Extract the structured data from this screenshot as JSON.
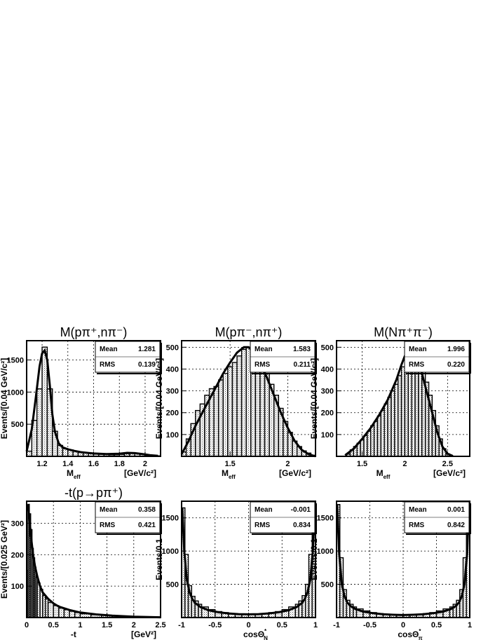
{
  "chart_data": [
    {
      "type": "histogram",
      "title": "M(pπ⁺,nπ⁻)",
      "ylabel": "Events/[0.04 GeV/c²]",
      "xlabel": "M_eff",
      "xlabel_main": "M",
      "xlabel_sub": "eff",
      "xunit": "[GeV/c²]",
      "xlim": [
        1.08,
        2.12
      ],
      "ylim": [
        0,
        1800
      ],
      "xticks": [
        1.2,
        1.4,
        1.6,
        1.8,
        2.0
      ],
      "xtick_labels": [
        "1.2",
        "1.4",
        "1.6",
        "1.8",
        "2"
      ],
      "yticks": [
        500,
        1000,
        1500
      ],
      "ytick_labels": [
        "500",
        "1000",
        "1500"
      ],
      "grid": true,
      "legend": "top-right",
      "stats": {
        "mean_label": "Mean",
        "mean": "1.281",
        "rms_label": "RMS",
        "rms": "0.139"
      },
      "bins_x": [
        1.08,
        1.12,
        1.16,
        1.2,
        1.24,
        1.28,
        1.32,
        1.36,
        1.4,
        1.44,
        1.48,
        1.52,
        1.56,
        1.6,
        1.64,
        1.68,
        1.72,
        1.76,
        1.8,
        1.84,
        1.88,
        1.92,
        1.96,
        2.0,
        2.04,
        2.08
      ],
      "bin_values": [
        80,
        560,
        1050,
        1700,
        1050,
        390,
        170,
        120,
        100,
        80,
        65,
        55,
        45,
        38,
        32,
        28,
        24,
        25,
        30,
        40,
        45,
        40,
        30,
        20,
        12,
        8
      ],
      "fit_x": [
        1.08,
        1.12,
        1.15,
        1.18,
        1.2,
        1.22,
        1.24,
        1.26,
        1.28,
        1.3,
        1.33,
        1.36,
        1.4,
        1.45,
        1.5,
        1.6,
        1.7,
        1.8,
        1.86,
        1.92,
        1.98,
        2.04,
        2.1
      ],
      "fit_y": [
        80,
        420,
        900,
        1400,
        1600,
        1650,
        1500,
        1100,
        650,
        380,
        200,
        140,
        110,
        85,
        65,
        45,
        35,
        40,
        55,
        50,
        35,
        18,
        8
      ]
    },
    {
      "type": "histogram",
      "title": "M(pπ⁻,nπ⁺)",
      "ylabel": "Events/[0.04 GeV/c²]",
      "xlabel": "M_eff",
      "xlabel_main": "M",
      "xlabel_sub": "eff",
      "xunit": "[GeV/c²]",
      "xlim": [
        1.08,
        2.24
      ],
      "ylim": [
        0,
        530
      ],
      "xticks": [
        1.5,
        2.0
      ],
      "xtick_labels": [
        "1.5",
        "2"
      ],
      "yticks": [
        100,
        200,
        300,
        400,
        500
      ],
      "ytick_labels": [
        "100",
        "200",
        "300",
        "400",
        "500"
      ],
      "grid": true,
      "legend": "top-right",
      "stats": {
        "mean_label": "Mean",
        "mean": "1.583",
        "rms_label": "RMS",
        "rms": "0.211"
      },
      "bins_x": [
        1.08,
        1.12,
        1.16,
        1.2,
        1.24,
        1.28,
        1.32,
        1.36,
        1.4,
        1.44,
        1.48,
        1.52,
        1.56,
        1.6,
        1.64,
        1.68,
        1.72,
        1.76,
        1.8,
        1.84,
        1.88,
        1.92,
        1.96,
        2.0,
        2.04,
        2.08,
        2.12,
        2.16,
        2.2
      ],
      "bin_values": [
        20,
        80,
        150,
        210,
        240,
        280,
        310,
        320,
        350,
        380,
        410,
        430,
        460,
        490,
        500,
        490,
        460,
        420,
        380,
        330,
        280,
        220,
        160,
        110,
        70,
        45,
        25,
        15,
        5
      ],
      "fit_x": [
        1.08,
        1.14,
        1.2,
        1.26,
        1.32,
        1.38,
        1.44,
        1.5,
        1.56,
        1.62,
        1.66,
        1.7,
        1.76,
        1.82,
        1.88,
        1.94,
        2.0,
        2.06,
        2.12,
        2.18,
        2.24
      ],
      "fit_y": [
        10,
        70,
        140,
        200,
        260,
        320,
        380,
        430,
        475,
        500,
        500,
        480,
        430,
        360,
        280,
        200,
        130,
        70,
        30,
        10,
        0
      ]
    },
    {
      "type": "histogram",
      "title": "M(Nπ⁺π⁻)",
      "ylabel": "Events/[0.04 GeV/c²]",
      "xlabel": "M_eff",
      "xlabel_main": "M",
      "xlabel_sub": "eff",
      "xunit": "[GeV/c²]",
      "xlim": [
        1.2,
        2.76
      ],
      "ylim": [
        0,
        530
      ],
      "xticks": [
        1.5,
        2.0,
        2.5
      ],
      "xtick_labels": [
        "1.5",
        "2",
        "2.5"
      ],
      "yticks": [
        100,
        200,
        300,
        400,
        500
      ],
      "ytick_labels": [
        "100",
        "200",
        "300",
        "400",
        "500"
      ],
      "grid": true,
      "legend": "top-right",
      "stats": {
        "mean_label": "Mean",
        "mean": "1.996",
        "rms_label": "RMS",
        "rms": "0.220"
      },
      "bins_x": [
        1.32,
        1.36,
        1.4,
        1.44,
        1.48,
        1.52,
        1.56,
        1.6,
        1.64,
        1.68,
        1.72,
        1.76,
        1.8,
        1.84,
        1.88,
        1.92,
        1.96,
        2.0,
        2.04,
        2.08,
        2.12,
        2.16,
        2.2,
        2.24,
        2.28,
        2.32,
        2.36,
        2.4,
        2.44,
        2.48,
        2.52
      ],
      "bin_values": [
        10,
        30,
        45,
        60,
        75,
        95,
        115,
        140,
        160,
        185,
        210,
        240,
        270,
        300,
        330,
        370,
        410,
        450,
        470,
        490,
        480,
        450,
        400,
        340,
        280,
        210,
        140,
        80,
        35,
        12,
        4
      ],
      "fit_x": [
        1.3,
        1.4,
        1.5,
        1.6,
        1.7,
        1.8,
        1.9,
        1.96,
        2.0,
        2.06,
        2.1,
        2.14,
        2.2,
        2.26,
        2.32,
        2.38,
        2.44,
        2.5,
        2.56
      ],
      "fit_y": [
        5,
        35,
        80,
        130,
        190,
        260,
        350,
        420,
        460,
        485,
        480,
        450,
        380,
        290,
        200,
        110,
        45,
        12,
        2
      ]
    },
    {
      "type": "histogram",
      "title": "-t(p→pπ⁺)",
      "ylabel": "Events/[0.025 GeV²]",
      "xlabel": "-t",
      "xlabel_main": "-t",
      "xlabel_sub": "",
      "xunit": "[GeV²]",
      "xlim": [
        0,
        2.5
      ],
      "ylim": [
        0,
        370
      ],
      "xticks": [
        0,
        0.5,
        1.0,
        1.5,
        2.0,
        2.5
      ],
      "xtick_labels": [
        "0",
        "0.5",
        "1",
        "1.5",
        "2",
        "2.5"
      ],
      "yticks": [
        100,
        200,
        300
      ],
      "ytick_labels": [
        "100",
        "200",
        "300"
      ],
      "grid": true,
      "legend": "top-right",
      "stats": {
        "mean_label": "Mean",
        "mean": "0.358",
        "rms_label": "RMS",
        "rms": "0.421"
      },
      "bins_x": [
        0.0,
        0.025,
        0.05,
        0.075,
        0.1,
        0.125,
        0.15,
        0.175,
        0.2,
        0.25,
        0.3,
        0.35,
        0.4,
        0.5,
        0.6,
        0.7,
        0.8,
        0.9,
        1.0,
        1.2,
        1.4,
        1.6,
        1.8,
        2.0,
        2.2
      ],
      "bin_widths": [
        0.025,
        0.025,
        0.025,
        0.025,
        0.025,
        0.025,
        0.025,
        0.025,
        0.05,
        0.05,
        0.05,
        0.05,
        0.1,
        0.1,
        0.1,
        0.1,
        0.1,
        0.1,
        0.2,
        0.2,
        0.2,
        0.2,
        0.2,
        0.2,
        0.3
      ],
      "bin_values": [
        150,
        360,
        330,
        280,
        220,
        190,
        160,
        130,
        110,
        90,
        70,
        60,
        48,
        38,
        30,
        25,
        20,
        16,
        12,
        9,
        7,
        5,
        4,
        3,
        2
      ],
      "fit_x": [
        0.02,
        0.05,
        0.08,
        0.12,
        0.16,
        0.2,
        0.25,
        0.3,
        0.4,
        0.5,
        0.6,
        0.8,
        1.0,
        1.3,
        1.6,
        2.0,
        2.5
      ],
      "fit_y": [
        360,
        320,
        260,
        200,
        160,
        130,
        100,
        80,
        60,
        45,
        35,
        24,
        16,
        10,
        6,
        3,
        1
      ]
    },
    {
      "type": "histogram",
      "title": "",
      "ylabel": "Events/0.1",
      "xlabel": "cosΘ*_N",
      "xlabel_main": "cosΘ",
      "xlabel_sub": "N",
      "xlabel_sup": "*",
      "xunit": "",
      "xlim": [
        -1,
        1
      ],
      "ylim": [
        0,
        1750
      ],
      "xticks": [
        -1,
        -0.5,
        0,
        0.5,
        1
      ],
      "xtick_labels": [
        "-1",
        "-0.5",
        "0",
        "0.5",
        "1"
      ],
      "yticks": [
        500,
        1000,
        1500
      ],
      "ytick_labels": [
        "500",
        "1000",
        "1500"
      ],
      "grid": true,
      "legend": "top-right",
      "stats": {
        "mean_label": "Mean",
        "mean": "-0.001",
        "rms_label": "RMS",
        "rms": "0.834"
      },
      "bins_x": [
        -1.0,
        -0.95,
        -0.9,
        -0.85,
        -0.8,
        -0.75,
        -0.7,
        -0.6,
        -0.5,
        -0.4,
        -0.3,
        -0.2,
        -0.1,
        0.0,
        0.1,
        0.2,
        0.3,
        0.4,
        0.5,
        0.6,
        0.7,
        0.75,
        0.8,
        0.85,
        0.9,
        0.95
      ],
      "bin_widths": [
        0.05,
        0.05,
        0.05,
        0.05,
        0.05,
        0.05,
        0.1,
        0.1,
        0.1,
        0.1,
        0.1,
        0.1,
        0.1,
        0.1,
        0.1,
        0.1,
        0.1,
        0.1,
        0.1,
        0.1,
        0.05,
        0.05,
        0.05,
        0.05,
        0.05,
        0.05
      ],
      "bin_values": [
        1650,
        950,
        480,
        320,
        250,
        200,
        160,
        120,
        90,
        75,
        60,
        55,
        50,
        50,
        55,
        60,
        75,
        90,
        120,
        160,
        200,
        250,
        330,
        500,
        950,
        1650
      ],
      "fit_x": [
        -0.99,
        -0.96,
        -0.92,
        -0.88,
        -0.84,
        -0.8,
        -0.72,
        -0.6,
        -0.45,
        -0.3,
        -0.15,
        0,
        0.15,
        0.3,
        0.45,
        0.6,
        0.72,
        0.8,
        0.84,
        0.88,
        0.92,
        0.96,
        0.99
      ],
      "fit_y": [
        1650,
        1000,
        560,
        380,
        280,
        220,
        160,
        110,
        80,
        62,
        52,
        48,
        52,
        62,
        80,
        110,
        160,
        220,
        280,
        380,
        560,
        1000,
        1650
      ]
    },
    {
      "type": "histogram",
      "title": "",
      "ylabel": "Events/0.1",
      "xlabel": "cosΘ*_π",
      "xlabel_main": "cosΘ",
      "xlabel_sub": "π",
      "xlabel_sup": "*",
      "xunit": "",
      "xlim": [
        -1,
        1
      ],
      "ylim": [
        0,
        1750
      ],
      "xticks": [
        -1,
        -0.5,
        0,
        0.5,
        1
      ],
      "xtick_labels": [
        "-1",
        "-0.5",
        "0",
        "0.5",
        "1"
      ],
      "yticks": [
        500,
        1000,
        1500
      ],
      "ytick_labels": [
        "500",
        "1000",
        "1500"
      ],
      "grid": true,
      "legend": "top-right",
      "stats": {
        "mean_label": "Mean",
        "mean": "0.001",
        "rms_label": "RMS",
        "rms": "0.842"
      },
      "bins_x": [
        -1.0,
        -0.95,
        -0.9,
        -0.85,
        -0.8,
        -0.75,
        -0.7,
        -0.6,
        -0.5,
        -0.4,
        -0.3,
        -0.2,
        -0.1,
        0.0,
        0.1,
        0.2,
        0.3,
        0.4,
        0.5,
        0.6,
        0.7,
        0.75,
        0.8,
        0.85,
        0.9,
        0.95
      ],
      "bin_widths": [
        0.05,
        0.05,
        0.05,
        0.05,
        0.05,
        0.05,
        0.1,
        0.1,
        0.1,
        0.1,
        0.1,
        0.1,
        0.1,
        0.1,
        0.1,
        0.1,
        0.1,
        0.1,
        0.1,
        0.1,
        0.05,
        0.05,
        0.05,
        0.05,
        0.05,
        0.05
      ],
      "bin_values": [
        1700,
        900,
        420,
        260,
        200,
        160,
        130,
        100,
        75,
        60,
        50,
        45,
        40,
        40,
        45,
        50,
        60,
        75,
        100,
        130,
        160,
        200,
        260,
        420,
        900,
        1700
      ],
      "fit_x": [
        -0.99,
        -0.96,
        -0.92,
        -0.88,
        -0.84,
        -0.8,
        -0.72,
        -0.6,
        -0.45,
        -0.3,
        -0.15,
        0,
        0.15,
        0.3,
        0.45,
        0.6,
        0.72,
        0.8,
        0.84,
        0.88,
        0.92,
        0.96,
        0.99
      ],
      "fit_y": [
        1700,
        960,
        500,
        320,
        230,
        180,
        130,
        90,
        65,
        50,
        42,
        38,
        42,
        50,
        65,
        90,
        130,
        180,
        230,
        320,
        500,
        960,
        1700
      ]
    }
  ]
}
